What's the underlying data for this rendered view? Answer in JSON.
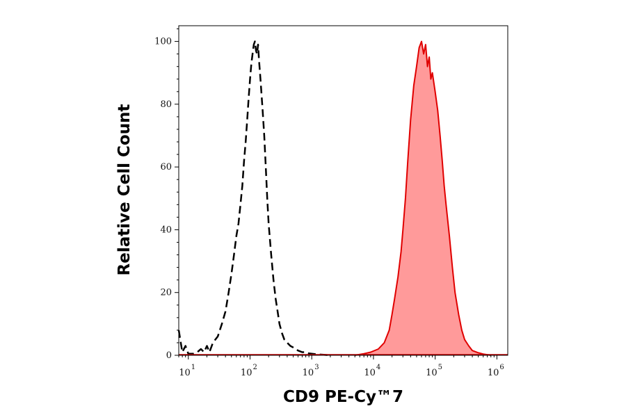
{
  "chart_data": {
    "type": "area",
    "xlabel": "CD9 PE-Cy™7",
    "ylabel": "Relative Cell Count",
    "x_scale": "log",
    "xlim": [
      7,
      1500000
    ],
    "ylim": [
      0,
      105
    ],
    "x_ticks": [
      {
        "value": 10,
        "base": "10",
        "exp": "1"
      },
      {
        "value": 100,
        "base": "10",
        "exp": "2"
      },
      {
        "value": 1000,
        "base": "10",
        "exp": "3"
      },
      {
        "value": 10000,
        "base": "10",
        "exp": "4"
      },
      {
        "value": 100000,
        "base": "10",
        "exp": "5"
      },
      {
        "value": 1000000,
        "base": "10",
        "exp": "6"
      }
    ],
    "y_ticks": [
      0,
      20,
      40,
      60,
      80,
      100
    ],
    "grid": false,
    "series": [
      {
        "style": "dashed-line",
        "color": "#000000",
        "x": [
          7,
          8,
          9,
          10,
          12,
          14,
          16,
          18,
          20,
          22,
          25,
          30,
          35,
          40,
          45,
          50,
          55,
          60,
          65,
          70,
          75,
          80,
          85,
          90,
          95,
          100,
          105,
          110,
          115,
          120,
          125,
          130,
          135,
          140,
          145,
          150,
          160,
          170,
          180,
          190,
          200,
          220,
          240,
          260,
          280,
          300,
          330,
          360,
          400,
          450,
          500,
          550,
          600,
          700,
          800,
          900,
          1000,
          1200,
          1500,
          2000
        ],
        "y": [
          8,
          1,
          3,
          0.5,
          0.5,
          1,
          2,
          1,
          3,
          1,
          4,
          6,
          10,
          14,
          20,
          26,
          32,
          38,
          42,
          48,
          54,
          62,
          68,
          75,
          82,
          88,
          93,
          96,
          99,
          100,
          97,
          96,
          99,
          94,
          90,
          86,
          78,
          70,
          60,
          50,
          42,
          32,
          24,
          18,
          14,
          10,
          7,
          5,
          4,
          3,
          2.5,
          2,
          1.5,
          1,
          1,
          0.6,
          0.5,
          0.3,
          0.2,
          0
        ]
      },
      {
        "style": "filled",
        "color": "#e00000",
        "fill": "#ff9a9a",
        "x": [
          5000,
          7000,
          9000,
          12000,
          15000,
          18000,
          20000,
          22000,
          25000,
          28000,
          30000,
          33000,
          36000,
          40000,
          45000,
          50000,
          55000,
          60000,
          65000,
          70000,
          75000,
          80000,
          85000,
          90000,
          100000,
          110000,
          120000,
          130000,
          140000,
          150000,
          170000,
          190000,
          210000,
          240000,
          270000,
          300000,
          350000,
          400000,
          500000,
          600000,
          800000
        ],
        "y": [
          0,
          0.5,
          1,
          2,
          4,
          8,
          13,
          18,
          25,
          33,
          40,
          50,
          62,
          75,
          86,
          92,
          98,
          100,
          96,
          99,
          92,
          95,
          88,
          90,
          84,
          78,
          70,
          62,
          54,
          48,
          38,
          28,
          20,
          13,
          8,
          5,
          3,
          1.5,
          0.8,
          0.4,
          0
        ]
      }
    ]
  }
}
